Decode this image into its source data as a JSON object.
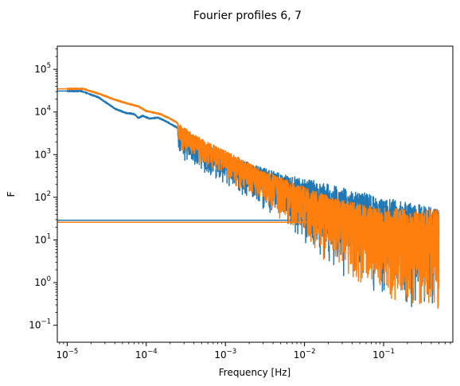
{
  "chart_data": {
    "type": "line",
    "title": "Fourier profiles 6, 7",
    "xlabel": "Frequency [Hz]",
    "ylabel": "F",
    "x_scale": "log",
    "y_scale": "log",
    "xlim": [
      7.5e-06,
      0.75
    ],
    "ylim": [
      0.04,
      350000
    ],
    "grid": false,
    "legend": "none",
    "x_ticks": [
      {
        "value": 1e-05,
        "base": "10",
        "exp": "−5"
      },
      {
        "value": 0.0001,
        "base": "10",
        "exp": "−4"
      },
      {
        "value": 0.001,
        "base": "10",
        "exp": "−3"
      },
      {
        "value": 0.01,
        "base": "10",
        "exp": "−2"
      },
      {
        "value": 0.1,
        "base": "10",
        "exp": "−1"
      }
    ],
    "y_ticks": [
      {
        "value": 0.1,
        "base": "10",
        "exp": "−1"
      },
      {
        "value": 1,
        "base": "10",
        "exp": "0"
      },
      {
        "value": 10,
        "base": "10",
        "exp": "1"
      },
      {
        "value": 100,
        "base": "10",
        "exp": "2"
      },
      {
        "value": 1000,
        "base": "10",
        "exp": "3"
      },
      {
        "value": 10000,
        "base": "10",
        "exp": "4"
      },
      {
        "value": 100000,
        "base": "10",
        "exp": "5"
      }
    ],
    "series": [
      {
        "color": "#1f77b4",
        "profile": [
          [
            1e-05,
            31000
          ],
          [
            1.5e-05,
            31000
          ],
          [
            2.5e-05,
            22000
          ],
          [
            4e-05,
            12000
          ],
          [
            5.5e-05,
            9500
          ],
          [
            7e-05,
            9000
          ],
          [
            8e-05,
            7200
          ],
          [
            9e-05,
            8200
          ],
          [
            0.00011,
            7000
          ],
          [
            0.00014,
            7400
          ],
          [
            0.00018,
            6000
          ],
          [
            0.00025,
            4200
          ],
          [
            0.0004,
            2700
          ],
          [
            0.0007,
            1400
          ],
          [
            0.0015,
            800
          ],
          [
            0.003,
            500
          ],
          [
            0.006,
            330
          ],
          [
            0.012,
            260
          ],
          [
            0.03,
            170
          ],
          [
            0.08,
            110
          ],
          [
            0.2,
            75
          ],
          [
            0.5,
            55
          ]
        ],
        "floor": [
          [
            0.00025,
            900
          ],
          [
            0.0007,
            250
          ],
          [
            0.0015,
            120
          ],
          [
            0.003,
            40
          ],
          [
            0.006,
            15
          ],
          [
            0.012,
            5
          ],
          [
            0.03,
            1.5
          ],
          [
            0.08,
            0.4
          ],
          [
            0.2,
            0.2
          ],
          [
            0.5,
            0.2
          ]
        ],
        "dc_level": 29,
        "dc_end": 0.018
      },
      {
        "color": "#ff7f0e",
        "profile": [
          [
            1e-05,
            35000
          ],
          [
            1.6e-05,
            35000
          ],
          [
            2.5e-05,
            27000
          ],
          [
            4e-05,
            19500
          ],
          [
            6e-05,
            15500
          ],
          [
            8e-05,
            13500
          ],
          [
            0.0001,
            10500
          ],
          [
            0.00015,
            9000
          ],
          [
            0.0002,
            7000
          ],
          [
            0.00025,
            5500
          ],
          [
            0.0004,
            3000
          ],
          [
            0.0007,
            1700
          ],
          [
            0.0015,
            850
          ],
          [
            0.003,
            420
          ],
          [
            0.006,
            260
          ],
          [
            0.012,
            150
          ],
          [
            0.03,
            85
          ],
          [
            0.08,
            60
          ],
          [
            0.2,
            52
          ],
          [
            0.5,
            50
          ]
        ],
        "floor": [
          [
            0.00025,
            1200
          ],
          [
            0.0007,
            400
          ],
          [
            0.0015,
            160
          ],
          [
            0.003,
            60
          ],
          [
            0.006,
            22
          ],
          [
            0.012,
            6
          ],
          [
            0.02,
            2
          ],
          [
            0.03,
            1.2
          ],
          [
            0.08,
            0.35
          ],
          [
            0.2,
            0.15
          ],
          [
            0.5,
            0.12
          ]
        ],
        "dc_level": 26,
        "dc_end": 0.018
      }
    ]
  }
}
